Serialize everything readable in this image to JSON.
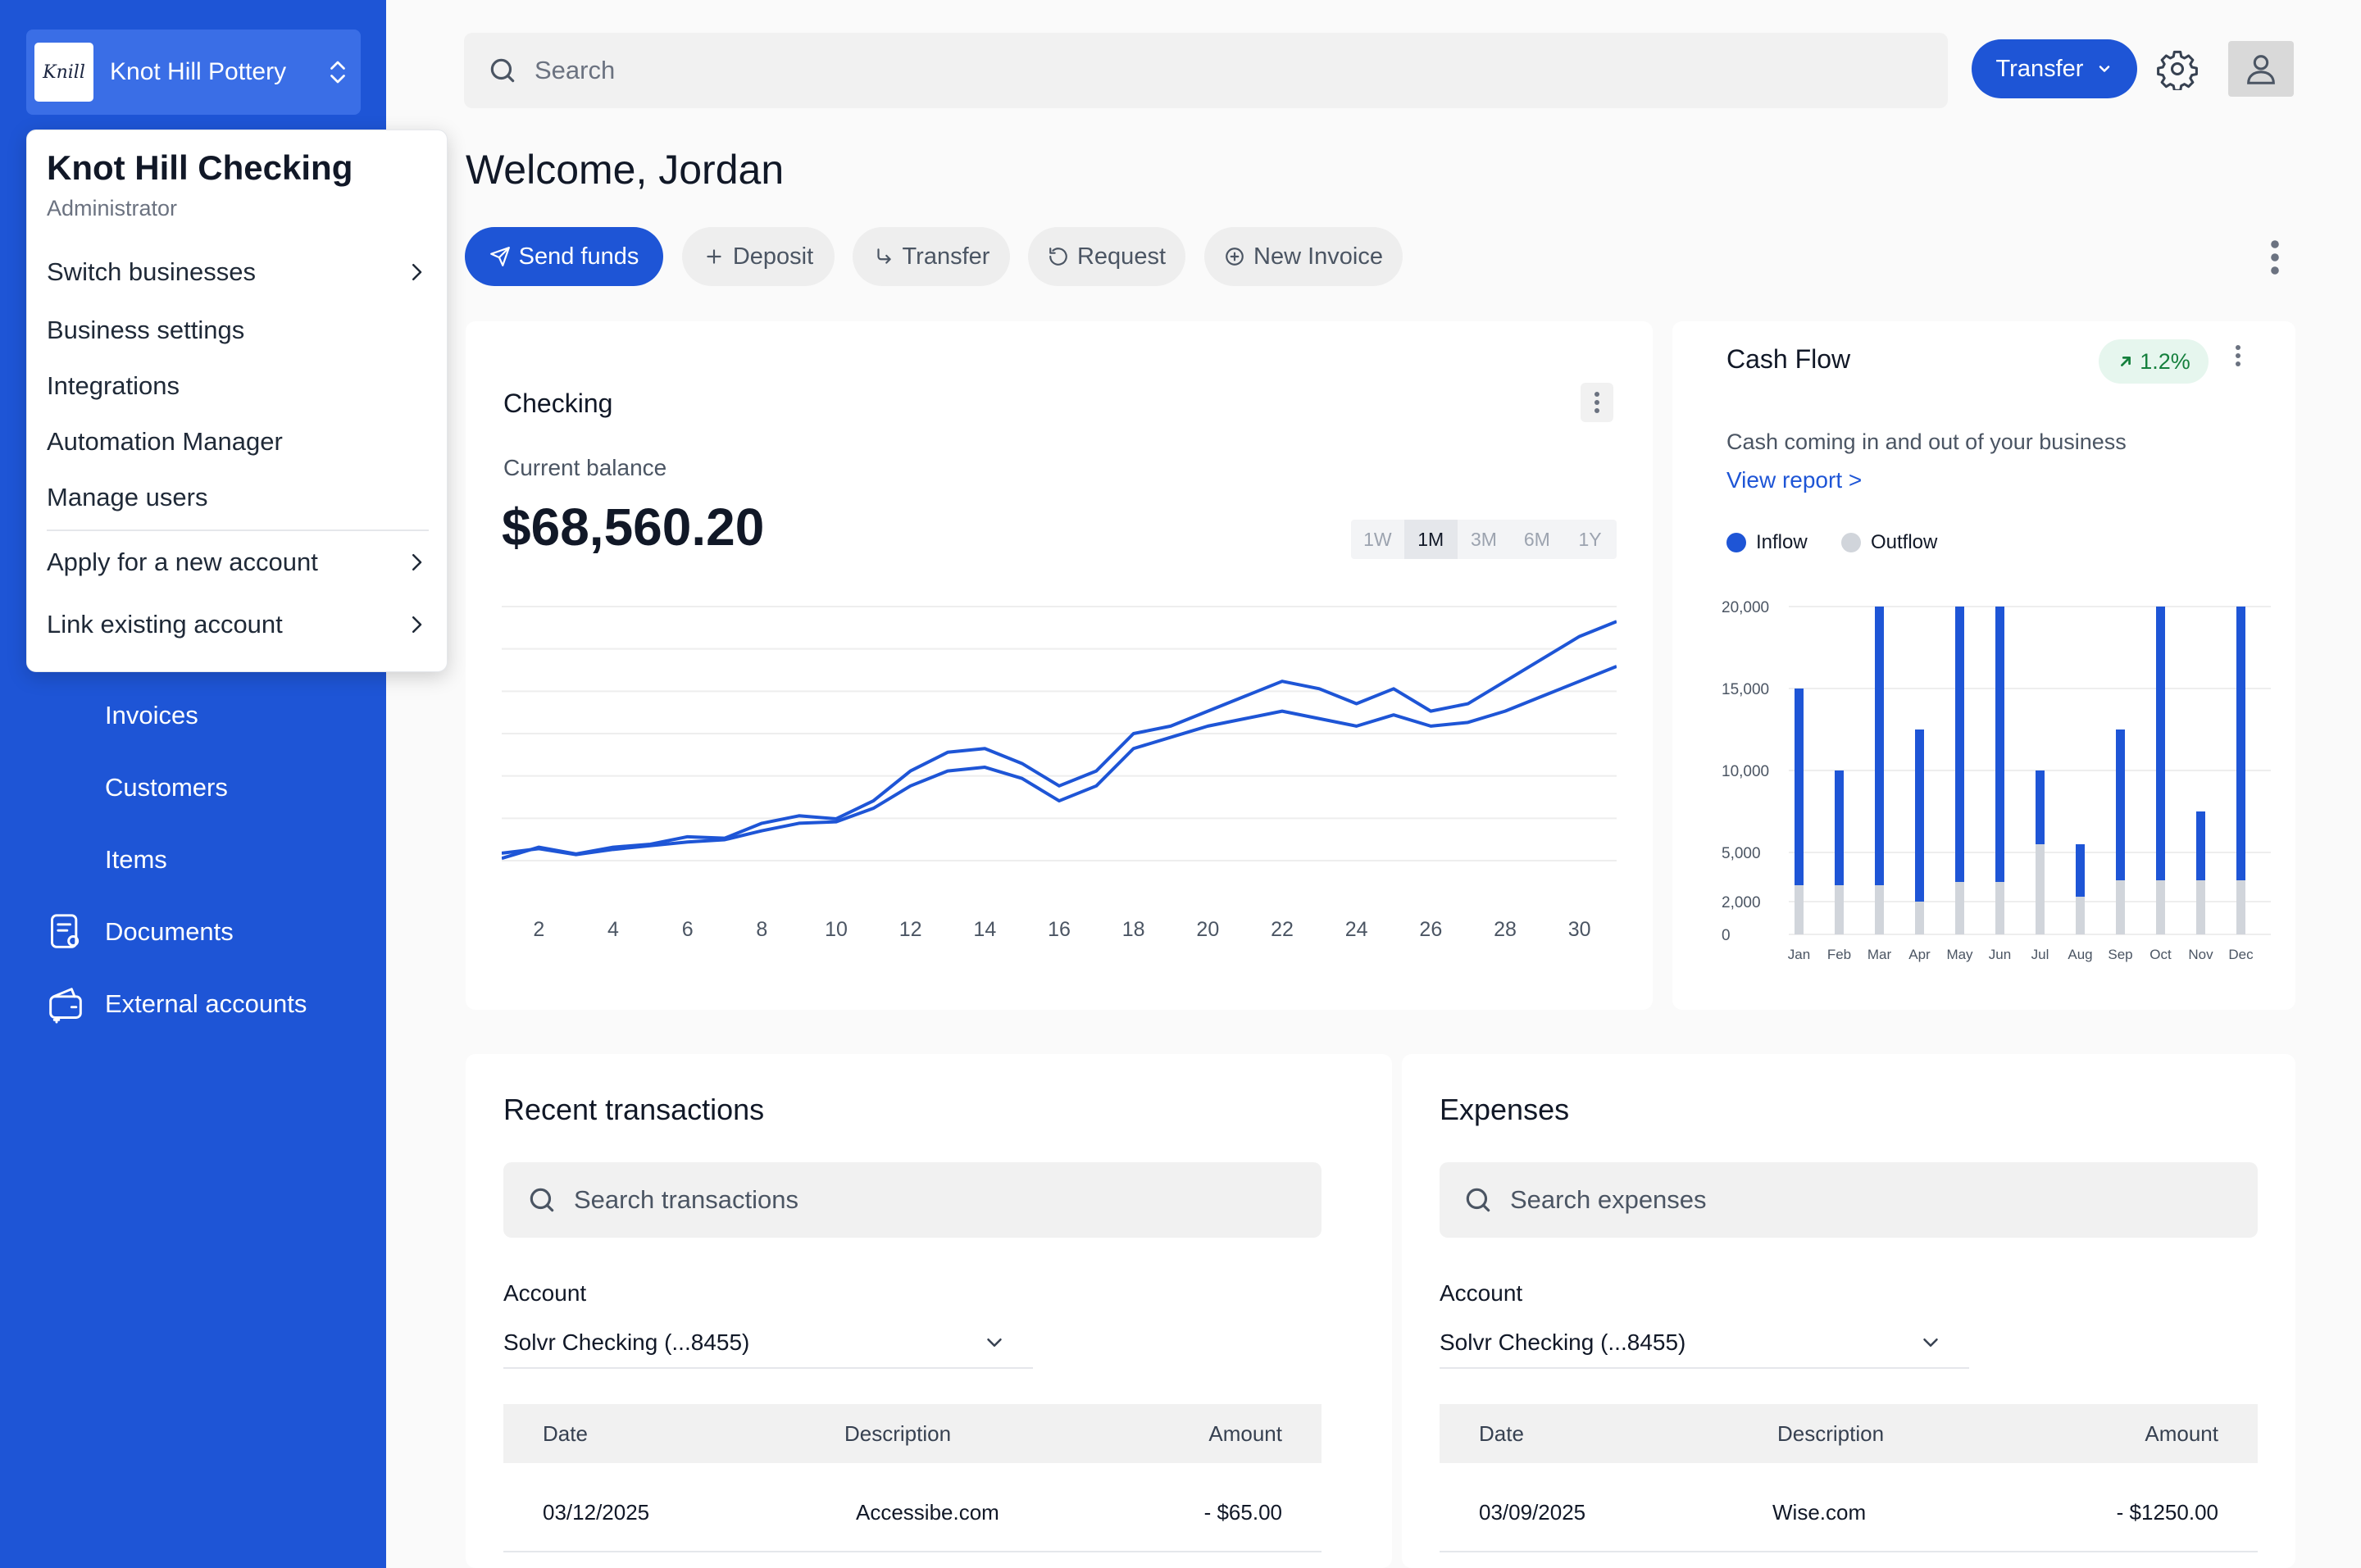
{
  "business": {
    "logo_text": "Knill",
    "name": "Knot Hill Pottery"
  },
  "dropdown": {
    "title": "Knot Hill Checking",
    "role": "Administrator",
    "items": [
      {
        "label": "Switch businesses",
        "chevron": true
      },
      {
        "label": "Business settings",
        "chevron": false
      },
      {
        "label": "Integrations",
        "chevron": false
      },
      {
        "label": "Automation Manager",
        "chevron": false
      },
      {
        "label": "Manage users",
        "chevron": false
      },
      {
        "label": "Apply for a new account",
        "chevron": true
      },
      {
        "label": "Link existing account",
        "chevron": true
      }
    ]
  },
  "sidebar": {
    "items": [
      {
        "label": "Invoices",
        "icon": "none"
      },
      {
        "label": "Customers",
        "icon": "none"
      },
      {
        "label": "Items",
        "icon": "none"
      },
      {
        "label": "Documents",
        "icon": "document-icon"
      },
      {
        "label": "External accounts",
        "icon": "wallet-icon"
      }
    ]
  },
  "header": {
    "search_placeholder": "Search",
    "transfer_label": "Transfer"
  },
  "welcome": "Welcome, Jordan",
  "actions": {
    "send_funds": "Send funds",
    "deposit": "Deposit",
    "transfer": "Transfer",
    "request": "Request",
    "new_invoice": "New Invoice"
  },
  "checking": {
    "title": "Checking",
    "balance_label": "Current balance",
    "balance": "$68,560.20",
    "ranges": [
      "1W",
      "1M",
      "3M",
      "6M",
      "1Y"
    ],
    "active_range": "1M"
  },
  "cashflow": {
    "title": "Cash Flow",
    "change": "1.2%",
    "subtitle": "Cash coming in and out of your business",
    "view_report": "View report  >",
    "legend": {
      "inflow": "Inflow",
      "outflow": "Outflow"
    }
  },
  "chart_data": [
    {
      "type": "line",
      "x": [
        1,
        2,
        3,
        4,
        5,
        6,
        7,
        8,
        9,
        10,
        11,
        12,
        13,
        14,
        15,
        16,
        17,
        18,
        19,
        20,
        21,
        22,
        23,
        24,
        25,
        26,
        27,
        28,
        29,
        30,
        31
      ],
      "x_ticks": [
        "2",
        "4",
        "6",
        "8",
        "10",
        "12",
        "14",
        "16",
        "18",
        "20",
        "22",
        "24",
        "26",
        "28",
        "30"
      ],
      "series": [
        {
          "values": [
            0.3,
            1.8,
            0.9,
            1.8,
            2.2,
            3.2,
            3.0,
            5.0,
            6.0,
            5.6,
            8.0,
            12.0,
            14.5,
            15.0,
            13.0,
            10.0,
            12.0,
            17.0,
            18.0,
            20.0,
            22.0,
            24.0,
            23.0,
            21.0,
            23.0,
            20.0,
            21.0,
            24.0,
            27.0,
            30.0,
            32.0
          ]
        },
        {
          "values": [
            1.0,
            1.6,
            0.8,
            1.5,
            2.0,
            2.5,
            2.8,
            4.0,
            5.0,
            5.2,
            7.0,
            10.0,
            12.0,
            12.5,
            11.0,
            8.0,
            10.0,
            15.0,
            16.5,
            18.0,
            19.0,
            20.0,
            19.0,
            18.0,
            19.5,
            18.0,
            18.5,
            20.0,
            22.0,
            24.0,
            26.0
          ]
        }
      ],
      "grid": true
    },
    {
      "type": "bar",
      "categories": [
        "Jan",
        "Feb",
        "Mar",
        "Apr",
        "May",
        "Jun",
        "Jul",
        "Aug",
        "Sep",
        "Oct",
        "Nov",
        "Dec"
      ],
      "y_ticks": [
        "0",
        "2,000",
        "5,000",
        "10,000",
        "15,000",
        "20,000"
      ],
      "series": [
        {
          "name": "Inflow",
          "values": [
            15000,
            10000,
            20000,
            12500,
            20000,
            20000,
            10000,
            5500,
            12500,
            20000,
            7500,
            20000
          ]
        },
        {
          "name": "Outflow",
          "values": [
            3000,
            3000,
            3000,
            2000,
            3200,
            3200,
            5500,
            2300,
            3300,
            3300,
            3300,
            3300
          ]
        }
      ],
      "legend": "top-left",
      "grid": true
    }
  ],
  "transactions": {
    "title": "Recent transactions",
    "search_placeholder": "Search transactions",
    "account_label": "Account",
    "account_value": "Solvr Checking (...8455)",
    "columns": {
      "date": "Date",
      "description": "Description",
      "amount": "Amount"
    },
    "rows": [
      {
        "date": "03/12/2025",
        "description": "Accessibe.com",
        "amount": "- $65.00"
      }
    ]
  },
  "expenses": {
    "title": "Expenses",
    "search_placeholder": "Search expenses",
    "account_label": "Account",
    "account_value": "Solvr Checking (...8455)",
    "columns": {
      "date": "Date",
      "description": "Description",
      "amount": "Amount"
    },
    "rows": [
      {
        "date": "03/09/2025",
        "description": "Wise.com",
        "amount": "- $1250.00"
      }
    ]
  },
  "colors": {
    "brand": "#1e55d6",
    "outflow": "#d1d5db",
    "positive": "#15803d"
  }
}
